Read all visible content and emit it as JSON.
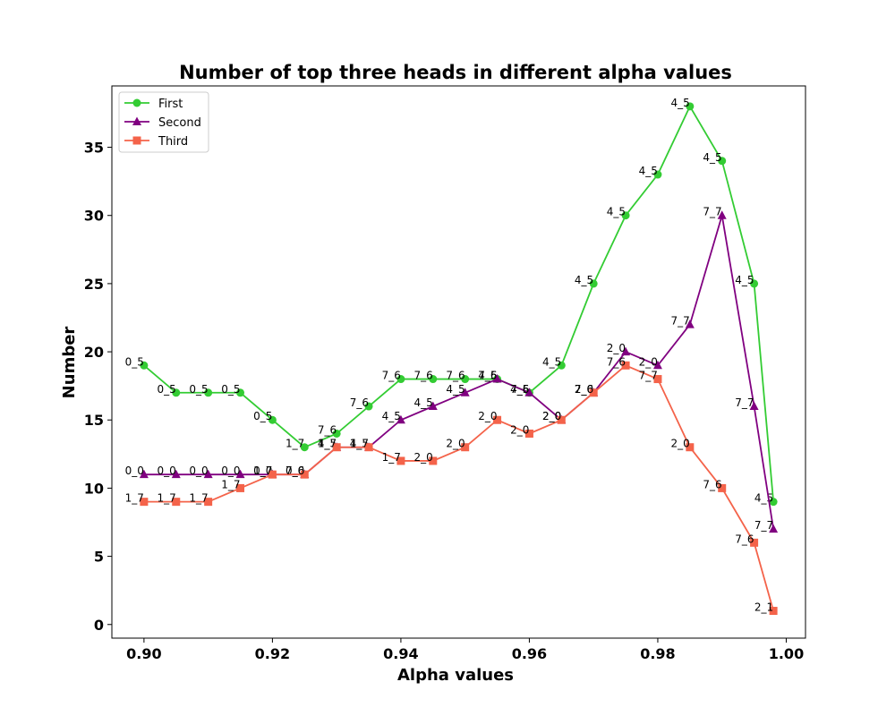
{
  "chart_data": {
    "type": "line",
    "title": "Number of top three heads in different alpha values",
    "xlabel": "Alpha values",
    "ylabel": "Number",
    "xlim": [
      0.895,
      1.003
    ],
    "ylim": [
      -1,
      39.5
    ],
    "xticks": [
      0.9,
      0.92,
      0.94,
      0.96,
      0.98,
      1.0
    ],
    "xtick_labels": [
      "0.90",
      "0.92",
      "0.94",
      "0.96",
      "0.98",
      "1.00"
    ],
    "yticks": [
      0,
      5,
      10,
      15,
      20,
      25,
      30,
      35
    ],
    "ytick_labels": [
      "0",
      "5",
      "10",
      "15",
      "20",
      "25",
      "30",
      "35"
    ],
    "grid": false,
    "legend_position": "top-left",
    "x": [
      0.9,
      0.905,
      0.91,
      0.915,
      0.92,
      0.925,
      0.93,
      0.935,
      0.94,
      0.945,
      0.95,
      0.955,
      0.96,
      0.965,
      0.97,
      0.975,
      0.98,
      0.985,
      0.99,
      0.995,
      0.998
    ],
    "series": [
      {
        "name": "First",
        "color": "#33cc33",
        "marker": "circle",
        "values": [
          19,
          17,
          17,
          17,
          15,
          13,
          14,
          16,
          18,
          18,
          18,
          18,
          17,
          19,
          25,
          30,
          33,
          38,
          34,
          25,
          9
        ],
        "labels": [
          "0_5",
          "0_5",
          "0_5",
          "0_5",
          "0_5",
          "1_7",
          "7_6",
          "7_6",
          "7_6",
          "7_6",
          "7_6",
          "7_6",
          "4_5",
          "4_5",
          "4_5",
          "4_5",
          "4_5",
          "4_5",
          "4_5",
          "4_5",
          "4_5"
        ]
      },
      {
        "name": "Second",
        "color": "#800080",
        "marker": "triangle",
        "values": [
          11,
          11,
          11,
          11,
          11,
          11,
          13,
          13,
          15,
          16,
          17,
          18,
          17,
          15,
          17,
          20,
          19,
          22,
          30,
          16,
          7
        ],
        "labels": [
          "0_0",
          "0_0",
          "0_0",
          "0_0",
          "0_0",
          "0_0",
          "4_5",
          "4_5",
          "4_5",
          "4_5",
          "4_5",
          "4_5",
          "7_6",
          "2_0",
          "2_0",
          "2_0",
          "2_0",
          "7_7",
          "7_7",
          "7_7",
          "7_7"
        ]
      },
      {
        "name": "Third",
        "color": "#f4634a",
        "marker": "square",
        "values": [
          9,
          9,
          9,
          10,
          11,
          11,
          13,
          13,
          12,
          12,
          13,
          15,
          14,
          15,
          17,
          19,
          18,
          13,
          10,
          6,
          1
        ],
        "labels": [
          "1_7",
          "1_7",
          "1_7",
          "1_7",
          "1_7",
          "7_6",
          "1_7",
          "1_7",
          "1_7",
          "2_0",
          "2_0",
          "2_0",
          "2_0",
          "2_0",
          "7_6",
          "7_6",
          "7_7",
          "2_0",
          "7_6",
          "7_6",
          "2_1"
        ]
      }
    ]
  }
}
